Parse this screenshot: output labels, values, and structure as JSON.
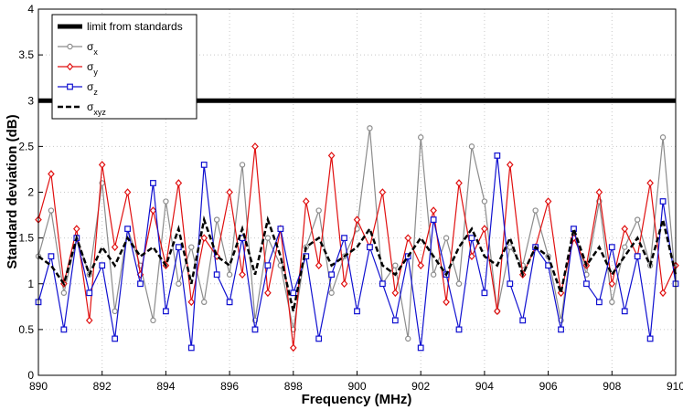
{
  "chart_data": {
    "type": "line",
    "xlabel": "Frequency (MHz)",
    "ylabel": "Standard deviation (dB)",
    "xlim": [
      890,
      910
    ],
    "ylim": [
      0,
      4
    ],
    "grid": true,
    "legend_position": "top-left",
    "x_ticks": [
      890,
      892,
      894,
      896,
      898,
      900,
      902,
      904,
      906,
      908,
      910
    ],
    "y_ticks": [
      0,
      0.5,
      1,
      1.5,
      2,
      2.5,
      3,
      3.5,
      4
    ],
    "x_tick_labels": [
      "890",
      "892",
      "894",
      "896",
      "898",
      "900",
      "902",
      "904",
      "906",
      "908",
      "910"
    ],
    "y_tick_labels": [
      "0",
      "0.5",
      "1",
      "1.5",
      "2",
      "2.5",
      "3",
      "3.5",
      "4"
    ],
    "x": [
      890.0,
      890.4,
      890.8,
      891.2,
      891.6,
      892.0,
      892.4,
      892.8,
      893.2,
      893.6,
      894.0,
      894.4,
      894.8,
      895.2,
      895.6,
      896.0,
      896.4,
      896.8,
      897.2,
      897.6,
      898.0,
      898.4,
      898.8,
      899.2,
      899.6,
      900.0,
      900.4,
      900.8,
      901.2,
      901.6,
      902.0,
      902.4,
      902.8,
      903.2,
      903.6,
      904.0,
      904.4,
      904.8,
      905.2,
      905.6,
      906.0,
      906.4,
      906.8,
      907.2,
      907.6,
      908.0,
      908.4,
      908.8,
      909.2,
      909.6,
      910.0
    ],
    "series": [
      {
        "name": "limit from standards",
        "color": "#000000",
        "style": "thick-solid",
        "x": [
          890,
          910
        ],
        "values": [
          3,
          3
        ]
      },
      {
        "name": "σx",
        "label_base": "σ",
        "label_sub": "x",
        "color": "#8c8c8c",
        "marker": "circle",
        "values": [
          1.3,
          1.8,
          0.9,
          1.5,
          1.1,
          2.1,
          0.7,
          1.6,
          1.2,
          0.6,
          1.9,
          1.0,
          1.4,
          0.8,
          1.7,
          1.1,
          2.3,
          0.6,
          1.5,
          1.2,
          0.5,
          1.4,
          1.8,
          0.9,
          1.3,
          1.6,
          2.7,
          1.0,
          1.2,
          0.4,
          2.6,
          1.1,
          1.5,
          1.0,
          2.5,
          1.9,
          0.7,
          1.4,
          1.2,
          1.8,
          1.3,
          0.6,
          1.6,
          1.1,
          1.9,
          0.8,
          1.4,
          1.7,
          1.2,
          2.6,
          1.0
        ]
      },
      {
        "name": "σy",
        "label_base": "σ",
        "label_sub": "y",
        "color": "#e01010",
        "marker": "diamond",
        "values": [
          1.7,
          2.2,
          1.0,
          1.6,
          0.6,
          2.3,
          1.4,
          2.0,
          1.1,
          1.8,
          1.2,
          2.1,
          0.8,
          1.5,
          1.3,
          2.0,
          1.1,
          2.5,
          0.9,
          1.6,
          0.3,
          1.9,
          1.2,
          2.4,
          1.0,
          1.7,
          1.4,
          2.0,
          0.9,
          1.5,
          1.2,
          1.8,
          0.8,
          2.1,
          1.3,
          1.6,
          0.7,
          2.3,
          1.1,
          1.4,
          1.9,
          0.9,
          1.5,
          1.2,
          2.0,
          1.0,
          1.6,
          1.3,
          2.1,
          0.9,
          1.2
        ]
      },
      {
        "name": "σz",
        "label_base": "σ",
        "label_sub": "z",
        "color": "#1010d0",
        "marker": "square",
        "values": [
          0.8,
          1.3,
          0.5,
          1.5,
          0.9,
          1.2,
          0.4,
          1.6,
          1.0,
          2.1,
          0.7,
          1.4,
          0.3,
          2.3,
          1.1,
          0.8,
          1.5,
          0.5,
          1.2,
          1.6,
          0.9,
          1.3,
          0.4,
          1.1,
          1.5,
          0.7,
          1.4,
          1.0,
          0.6,
          1.3,
          0.3,
          1.7,
          1.1,
          0.5,
          1.5,
          0.9,
          2.4,
          1.0,
          0.6,
          1.4,
          1.2,
          0.5,
          1.6,
          1.0,
          0.8,
          1.4,
          0.7,
          1.3,
          0.4,
          1.9,
          1.0
        ]
      },
      {
        "name": "σxyz",
        "label_base": "σ",
        "label_sub": "xyz",
        "color": "#000000",
        "style": "dashed",
        "values": [
          1.3,
          1.2,
          1.0,
          1.5,
          1.1,
          1.4,
          1.2,
          1.5,
          1.3,
          1.4,
          1.2,
          1.6,
          1.0,
          1.7,
          1.3,
          1.2,
          1.6,
          1.1,
          1.7,
          1.3,
          0.7,
          1.4,
          1.5,
          1.2,
          1.3,
          1.4,
          1.6,
          1.2,
          1.1,
          1.3,
          1.5,
          1.3,
          1.1,
          1.4,
          1.6,
          1.3,
          1.2,
          1.5,
          1.1,
          1.4,
          1.3,
          0.9,
          1.6,
          1.2,
          1.4,
          1.1,
          1.3,
          1.5,
          1.2,
          1.7,
          1.1
        ]
      }
    ]
  }
}
